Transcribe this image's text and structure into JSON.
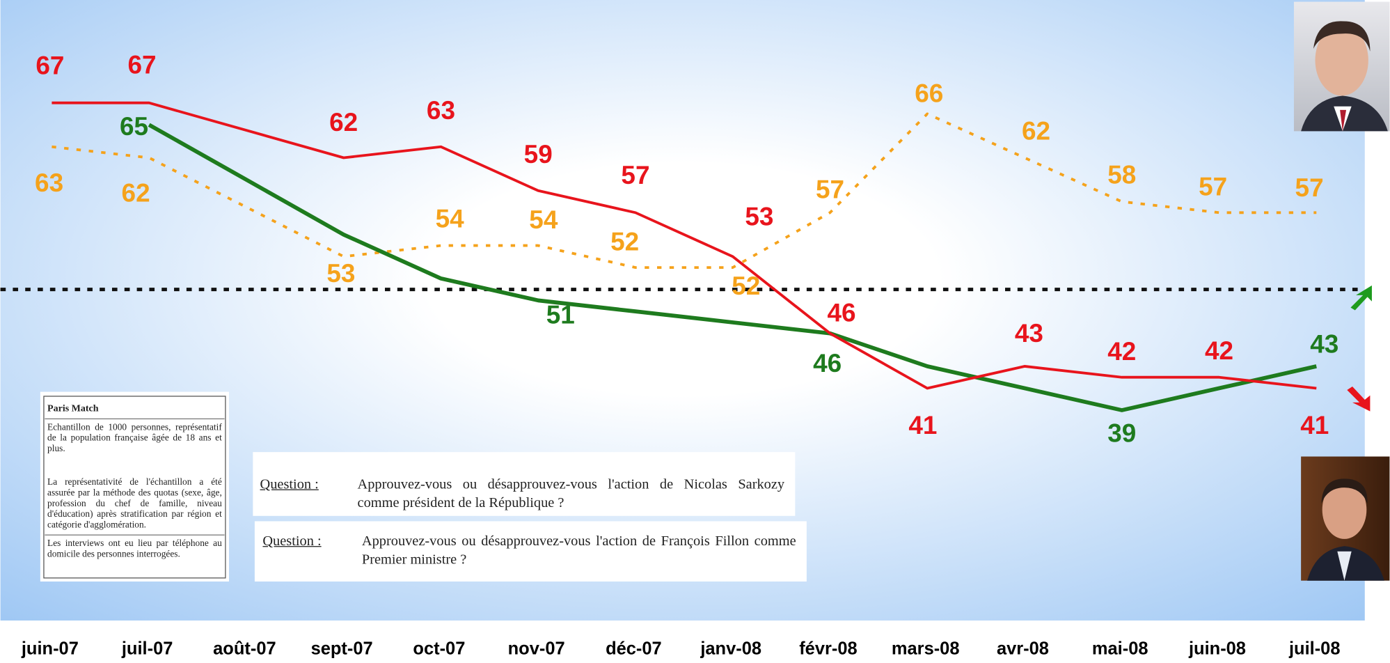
{
  "chart_data": {
    "type": "line",
    "categories": [
      "juin-07",
      "juil-07",
      "août-07",
      "sept-07",
      "oct-07",
      "nov-07",
      "déc-07",
      "janv-08",
      "févr-08",
      "mars-08",
      "avr-08",
      "mai-08",
      "juin-08",
      "juil-08"
    ],
    "series": [
      {
        "color": "#e8141c",
        "style": "solid",
        "values": [
          67,
          67,
          null,
          62,
          63,
          59,
          57,
          53,
          46,
          41,
          43,
          42,
          42,
          41
        ]
      },
      {
        "color": "#f5a21b",
        "style": "dashed",
        "values": [
          63,
          62,
          null,
          53,
          54,
          54,
          52,
          52,
          57,
          66,
          62,
          58,
          57,
          57
        ]
      },
      {
        "color": "#1e7b1e",
        "style": "solid",
        "values": [
          null,
          65,
          null,
          55,
          51,
          49,
          48,
          47,
          46,
          43,
          41,
          39,
          41,
          43
        ],
        "value_labels": [
          null,
          "65",
          null,
          null,
          "51",
          null,
          null,
          null,
          "46",
          null,
          null,
          "39",
          null,
          "43"
        ]
      }
    ],
    "connect_gaps": true,
    "reference_line": 50,
    "ylim": [
      20,
      76
    ]
  },
  "notes": {
    "title": "Paris Match",
    "paragraphs": [
      "Echantillon de 1000 personnes, représentatif de la population française âgée de 18 ans et plus.",
      "La représentativité de l'échantillon a été assurée par la méthode des quotas (sexe, âge, profession du chef de famille, niveau d'éducation) après stratification par région et catégorie d'agglomération.",
      "Les interviews ont eu lieu par téléphone au domicile des personnes interrogées."
    ]
  },
  "questions": [
    {
      "label": "Question :",
      "text": "Approuvez-vous ou désapprouvez-vous l'action de Nicolas Sarkozy comme président de la République ?"
    },
    {
      "label": "Question :",
      "text": "Approuvez-vous ou désapprouvez-vous l'action de François Fillon comme Premier ministre ?"
    }
  ]
}
